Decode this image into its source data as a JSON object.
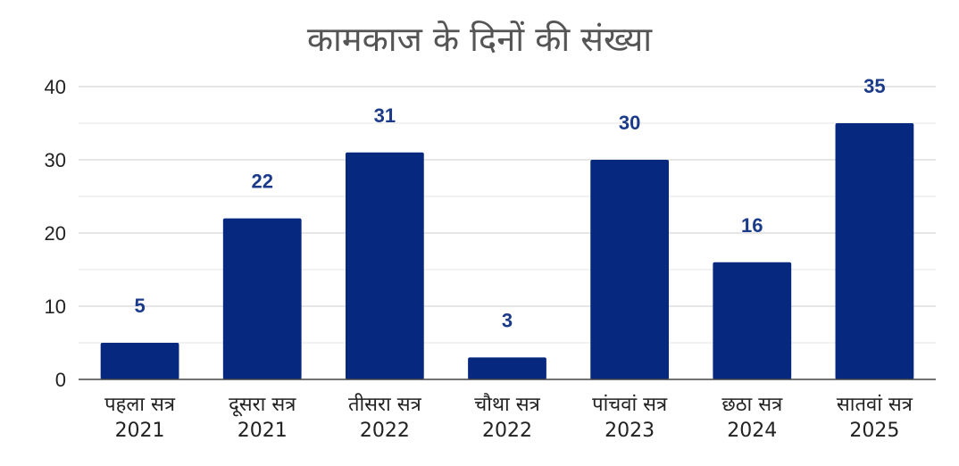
{
  "chart_data": {
    "type": "bar",
    "title": "कामकाज के दिनों की संख्या",
    "xlabel": "",
    "ylabel": "",
    "ylim": [
      0,
      40
    ],
    "yticks": [
      "0",
      "10",
      "20",
      "30",
      "40"
    ],
    "grid": true,
    "legend": "none",
    "bar_color": "#06297f",
    "label_color": "#1b3b8a",
    "categories": [
      {
        "line1": "पहला सत्र",
        "line2": "2021"
      },
      {
        "line1": "दूसरा सत्र",
        "line2": "2021"
      },
      {
        "line1": "तीसरा सत्र",
        "line2": "2022"
      },
      {
        "line1": "चौथा सत्र",
        "line2": "2022"
      },
      {
        "line1": "पांचवां सत्र",
        "line2": "2023"
      },
      {
        "line1": "छठा सत्र",
        "line2": "2024"
      },
      {
        "line1": "सातवां सत्र",
        "line2": "2025"
      }
    ],
    "values": [
      5,
      22,
      31,
      3,
      30,
      16,
      35
    ],
    "value_labels": [
      "5",
      "22",
      "31",
      "3",
      "30",
      "16",
      "35"
    ]
  }
}
